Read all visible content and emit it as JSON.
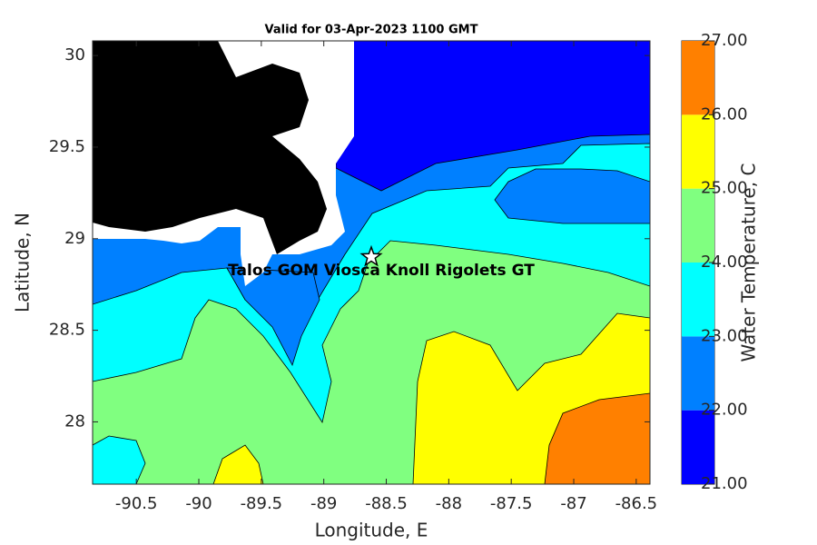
{
  "chart_data": {
    "type": "contour-map",
    "title": "Valid for 03-Apr-2023 1100 GMT",
    "x_label": "Longitude, E",
    "y_label": "Latitude, N",
    "xlim": [
      -90.85,
      -86.39
    ],
    "ylim": [
      27.66,
      30.08
    ],
    "xticks": [
      -90.5,
      -90,
      -89.5,
      -89,
      -88.5,
      -88,
      -87.5,
      -87,
      -86.5
    ],
    "yticks": [
      28,
      28.5,
      29,
      29.5,
      30
    ],
    "colorbar": {
      "label": "Water Temperature, C",
      "clim": [
        21,
        27
      ],
      "ticks": [
        {
          "value": 21,
          "label": "21.00"
        },
        {
          "value": 22,
          "label": "22.00"
        },
        {
          "value": 23,
          "label": "23.00"
        },
        {
          "value": 24,
          "label": "24.00"
        },
        {
          "value": 25,
          "label": "25.00"
        },
        {
          "value": 26,
          "label": "26.00"
        },
        {
          "value": 27,
          "label": "27.00"
        }
      ],
      "colors": [
        "#0000ff",
        "#0080ff",
        "#00ffff",
        "#80ff80",
        "#ffff00",
        "#ff8000"
      ]
    },
    "station": {
      "name": "Talos GOM Viosca Knoll Rigolets GT",
      "lon": -88.62,
      "lat": 28.9
    }
  }
}
